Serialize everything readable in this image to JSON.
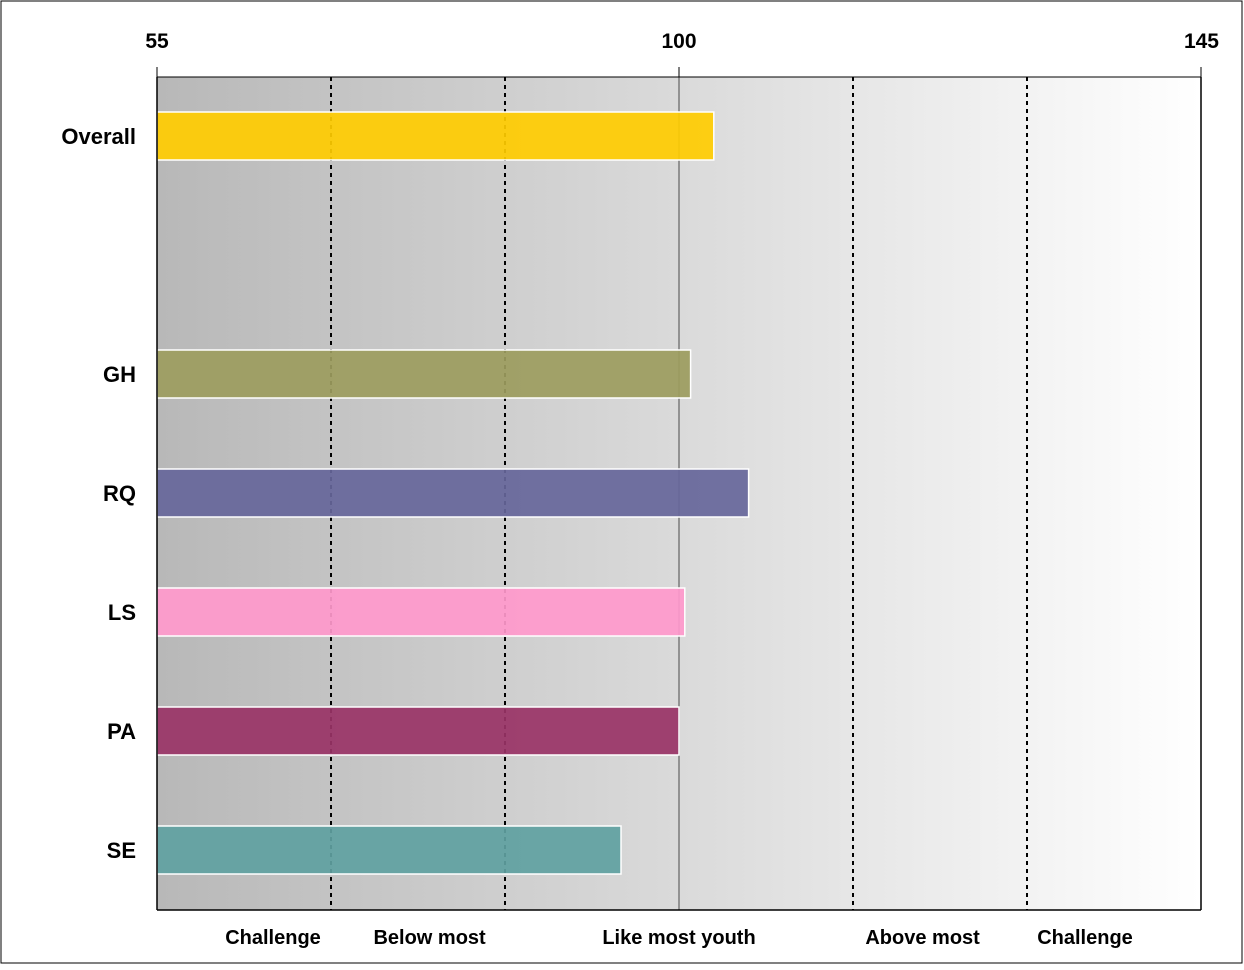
{
  "chart_data": {
    "type": "bar",
    "orientation": "horizontal",
    "title": "",
    "xlabel": "",
    "ylabel": "",
    "xlim": [
      55,
      145
    ],
    "x_ticks": [
      55,
      100,
      145
    ],
    "x_tick_labels": [
      "55",
      "100",
      "145"
    ],
    "grid": false,
    "categories": [
      "Overall",
      "GH",
      "RQ",
      "LS",
      "PA",
      "SE"
    ],
    "values": [
      103,
      101,
      106,
      100.5,
      100,
      95
    ],
    "bar_colors": [
      "#FFCC00",
      "#9C9C5E",
      "#66669A",
      "#FF99CC",
      "#993366",
      "#5FA1A1"
    ],
    "reference_lines": [
      70,
      85,
      115,
      130
    ],
    "center_line": 100,
    "band_labels": [
      {
        "label": "Challenge",
        "at": 65
      },
      {
        "label": "Below most",
        "at": 78.5
      },
      {
        "label": "Like most youth",
        "at": 100
      },
      {
        "label": "Above most",
        "at": 121
      },
      {
        "label": "Challenge",
        "at": 135
      }
    ]
  }
}
